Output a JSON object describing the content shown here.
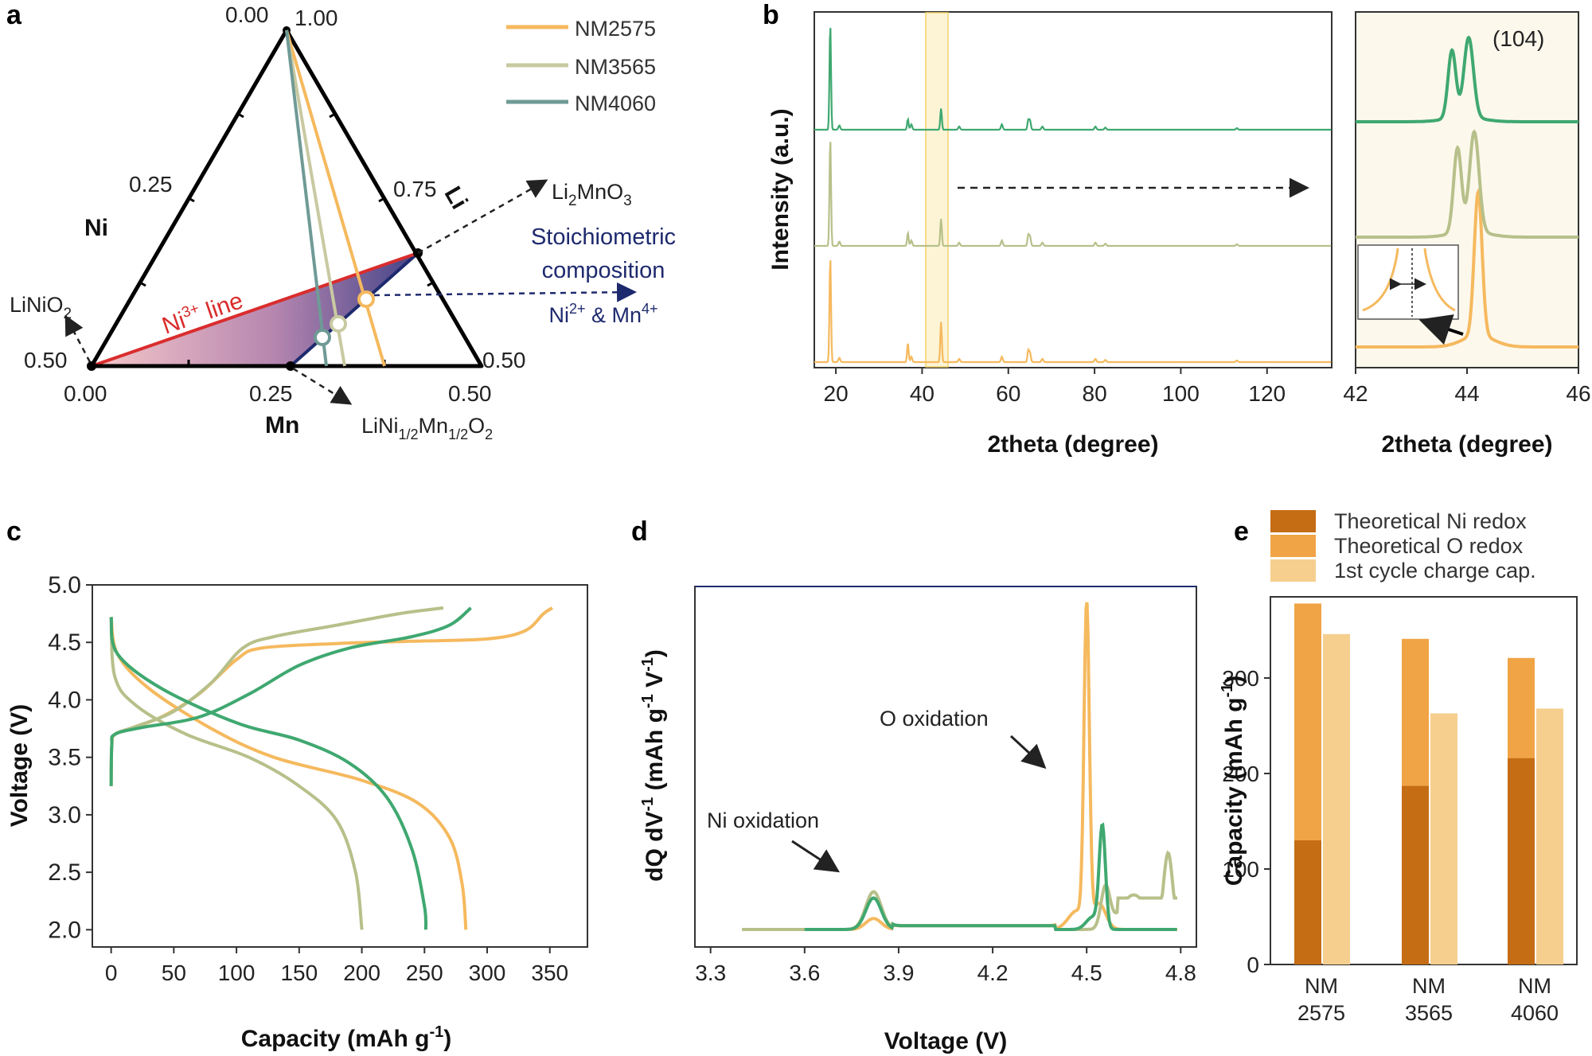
{
  "colors": {
    "nm2575": "#f5b95e",
    "nm3565": "#b7c08a",
    "nm4060": "#3fa870",
    "ni_line": "#d92d2d",
    "stoich": "#1e2a6e",
    "ni_redox": "#c46d14",
    "o_redox": "#f0a446",
    "charge_cap": "#f6cf8f"
  },
  "panel_a": {
    "label": "a",
    "vertex_top_left": "0.00",
    "vertex_top_right": "1.00",
    "left_mid": "0.25",
    "right_mid": "0.75",
    "left_bottom": "0.50",
    "right_bottom": "0.50",
    "base_start": "0.00",
    "base_mid": "0.25",
    "base_end": "0.50",
    "axis_ni": "Ni",
    "axis_li": "Li",
    "axis_mn": "Mn",
    "ni3_line_label": "Ni",
    "ni3_sup": "3+",
    "ni3_suffix": " line",
    "li2mno3": "Li",
    "li2mno3_sub": "2",
    "li2mno3_mid": "MnO",
    "li2mno3_sub2": "3",
    "linio2": "LiNiO",
    "linio2_sub": "2",
    "linimn": "LiNi",
    "linimn_sub1": "1/2",
    "linimn_mid": "Mn",
    "linimn_sub2": "1/2",
    "linimn_end": "O",
    "linimn_sub3": "2",
    "stoich_line1": "Stoichiometric",
    "stoich_line2": "composition",
    "stoich_line3_a": "Ni",
    "stoich_line3_sup1": "2+",
    "stoich_line3_b": " & Mn",
    "stoich_line3_sup2": "4+",
    "legend": [
      "NM2575",
      "NM3565",
      "NM4060"
    ]
  },
  "panel_b": {
    "label": "b",
    "ylabel": "Intensity (a.u.)",
    "xlabel": "2theta (degree)",
    "xticks": [
      "20",
      "40",
      "60",
      "80",
      "100",
      "120"
    ],
    "inset_xlabel": "2theta (degree)",
    "inset_xticks": [
      "42",
      "44",
      "46"
    ],
    "inset_peak_label": "(104)"
  },
  "panel_c": {
    "label": "c"
  },
  "panel_d": {
    "label": "d",
    "anno_o": "O oxidation",
    "anno_ni": "Ni oxidation"
  },
  "panel_e": {
    "label": "e",
    "legend": [
      "Theoretical Ni redox",
      "Theoretical O redox",
      "1st cycle charge cap."
    ]
  },
  "chart_data": [
    {
      "type": "line",
      "panel": "b",
      "title": "",
      "xlabel": "2theta (degree)",
      "ylabel": "Intensity (a.u.)",
      "xlim": [
        15,
        135
      ],
      "series": [
        {
          "name": "NM2575",
          "peaks": [
            [
              18.7,
              1.0
            ],
            [
              36.7,
              0.18
            ],
            [
              44.4,
              0.38
            ],
            [
              64.6,
              0.1
            ]
          ]
        },
        {
          "name": "NM3565",
          "peaks": [
            [
              18.7,
              1.0
            ],
            [
              36.7,
              0.12
            ],
            [
              44.4,
              0.25
            ],
            [
              64.6,
              0.09
            ]
          ]
        },
        {
          "name": "NM4060",
          "peaks": [
            [
              18.7,
              1.0
            ],
            [
              36.7,
              0.1
            ],
            [
              44.4,
              0.2
            ],
            [
              64.6,
              0.08
            ]
          ]
        }
      ]
    },
    {
      "type": "line",
      "panel": "b-inset",
      "xlabel": "2theta (degree)",
      "xlim": [
        42,
        46
      ],
      "series": [
        {
          "name": "NM2575",
          "peak_center": 44.2
        },
        {
          "name": "NM3565",
          "peak_center": 44.05
        },
        {
          "name": "NM4060",
          "peak_center": 43.95
        }
      ]
    },
    {
      "type": "line",
      "panel": "c",
      "xlabel": "Capacity (mAh g",
      "xlabel_sup": "-1",
      "xlabel_end": ")",
      "ylabel": "Voltage (V)",
      "xlim": [
        -15,
        380
      ],
      "ylim": [
        2.0,
        5.0
      ],
      "xticks": [
        0,
        50,
        100,
        150,
        200,
        250,
        300,
        350
      ],
      "yticks": [
        "2.0",
        "2.5",
        "3.0",
        "3.5",
        "4.0",
        "4.5",
        "5.0"
      ],
      "series": [
        {
          "name": "NM2575",
          "charge": [
            [
              0,
              3.25
            ],
            [
              0.5,
              3.6
            ],
            [
              3,
              3.7
            ],
            [
              15,
              3.75
            ],
            [
              40,
              3.85
            ],
            [
              70,
              4.05
            ],
            [
              100,
              4.35
            ],
            [
              120,
              4.45
            ],
            [
              180,
              4.49
            ],
            [
              240,
              4.51
            ],
            [
              300,
              4.53
            ],
            [
              330,
              4.6
            ],
            [
              345,
              4.75
            ],
            [
              352,
              4.8
            ]
          ],
          "discharge": [
            [
              0,
              4.72
            ],
            [
              5,
              4.4
            ],
            [
              30,
              4.1
            ],
            [
              80,
              3.75
            ],
            [
              130,
              3.5
            ],
            [
              200,
              3.3
            ],
            [
              245,
              3.1
            ],
            [
              270,
              2.8
            ],
            [
              280,
              2.4
            ],
            [
              283,
              2.0
            ]
          ]
        },
        {
          "name": "NM3565",
          "charge": [
            [
              0,
              3.25
            ],
            [
              0.5,
              3.6
            ],
            [
              3,
              3.7
            ],
            [
              20,
              3.77
            ],
            [
              50,
              3.9
            ],
            [
              80,
              4.15
            ],
            [
              105,
              4.45
            ],
            [
              130,
              4.55
            ],
            [
              180,
              4.65
            ],
            [
              230,
              4.75
            ],
            [
              265,
              4.8
            ]
          ],
          "discharge": [
            [
              0,
              4.72
            ],
            [
              3,
              4.2
            ],
            [
              20,
              3.95
            ],
            [
              60,
              3.7
            ],
            [
              110,
              3.5
            ],
            [
              150,
              3.25
            ],
            [
              180,
              2.95
            ],
            [
              195,
              2.5
            ],
            [
              200,
              2.0
            ]
          ]
        },
        {
          "name": "NM4060",
          "charge": [
            [
              0,
              3.25
            ],
            [
              0.5,
              3.6
            ],
            [
              3,
              3.7
            ],
            [
              25,
              3.76
            ],
            [
              70,
              3.85
            ],
            [
              110,
              4.05
            ],
            [
              150,
              4.3
            ],
            [
              190,
              4.45
            ],
            [
              240,
              4.55
            ],
            [
              270,
              4.65
            ],
            [
              287,
              4.8
            ]
          ],
          "discharge": [
            [
              0,
              4.72
            ],
            [
              5,
              4.4
            ],
            [
              40,
              4.1
            ],
            [
              100,
              3.8
            ],
            [
              150,
              3.65
            ],
            [
              190,
              3.45
            ],
            [
              220,
              3.15
            ],
            [
              240,
              2.7
            ],
            [
              250,
              2.2
            ],
            [
              251,
              2.0
            ]
          ]
        }
      ]
    },
    {
      "type": "line",
      "panel": "d",
      "xlabel": "Voltage (V)",
      "ylabel": "dQ dV",
      "ylabel_sup1": "-1",
      "ylabel_mid": " (mAh g",
      "ylabel_sup2": "-1",
      "ylabel_mid2": " V",
      "ylabel_sup3": "-1",
      "ylabel_end": ")",
      "xlim": [
        3.25,
        4.85
      ],
      "xticks": [
        "3.3",
        "3.6",
        "3.9",
        "4.2",
        "4.5",
        "4.8"
      ],
      "series": [
        {
          "name": "NM2575",
          "points": [
            [
              3.4,
              0.0
            ],
            [
              3.6,
              0.0
            ],
            [
              3.7,
              0.01
            ],
            [
              3.82,
              0.04
            ],
            [
              3.9,
              0.01
            ],
            [
              4.4,
              0.01
            ],
            [
              4.46,
              0.1
            ],
            [
              4.5,
              1.0
            ],
            [
              4.53,
              0.3
            ],
            [
              4.58,
              0.03
            ],
            [
              4.7,
              0.01
            ],
            [
              4.79,
              0.01
            ]
          ]
        },
        {
          "name": "NM3565",
          "points": [
            [
              3.4,
              0.0
            ],
            [
              3.6,
              0.0
            ],
            [
              3.72,
              0.02
            ],
            [
              3.82,
              0.12
            ],
            [
              3.9,
              0.03
            ],
            [
              4.4,
              0.01
            ],
            [
              4.52,
              0.05
            ],
            [
              4.56,
              0.15
            ],
            [
              4.6,
              0.11
            ],
            [
              4.68,
              0.12
            ],
            [
              4.72,
              0.15
            ],
            [
              4.75,
              0.25
            ],
            [
              4.79,
              0.21
            ]
          ]
        },
        {
          "name": "NM4060",
          "points": [
            [
              3.6,
              0.0
            ],
            [
              3.68,
              0.01
            ],
            [
              3.82,
              0.1
            ],
            [
              3.9,
              0.02
            ],
            [
              4.4,
              0.01
            ],
            [
              4.5,
              0.03
            ],
            [
              4.55,
              0.32
            ],
            [
              4.58,
              0.1
            ],
            [
              4.65,
              0.01
            ],
            [
              4.79,
              0.01
            ]
          ]
        }
      ]
    },
    {
      "type": "bar",
      "panel": "e",
      "ylabel": "Capacity (mAh g",
      "ylabel_sup": "-1",
      "ylabel_end": ")",
      "ylim": [
        0,
        385
      ],
      "yticks": [
        0,
        100,
        200,
        300
      ],
      "categories": [
        [
          "NM",
          "2575"
        ],
        [
          "NM",
          "3565"
        ],
        [
          "NM",
          "4060"
        ]
      ],
      "series": [
        {
          "name": "Theoretical Ni redox",
          "values": [
            130,
            187,
            216
          ]
        },
        {
          "name": "Theoretical O redox",
          "values": [
            378,
            341,
            321
          ]
        },
        {
          "name": "1st cycle charge cap.",
          "values": [
            346,
            263,
            268
          ]
        }
      ]
    }
  ]
}
